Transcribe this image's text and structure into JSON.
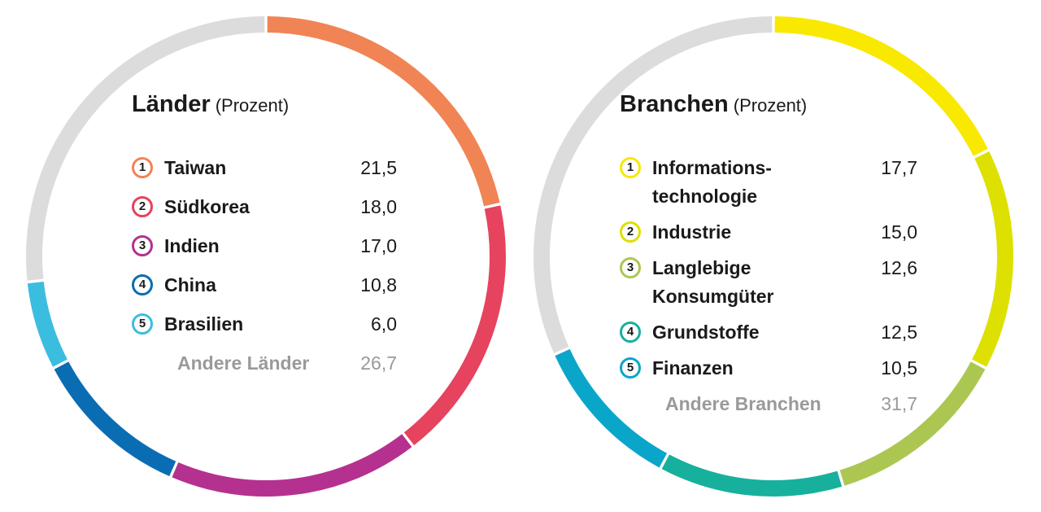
{
  "chart_data": [
    {
      "type": "pie",
      "title": "Länder",
      "subtitle": "(Prozent)",
      "categories": [
        "Taiwan",
        "Südkorea",
        "Indien",
        "China",
        "Brasilien",
        "Andere Länder"
      ],
      "values": [
        21.5,
        18.0,
        17.0,
        10.8,
        6.0,
        26.7
      ],
      "value_labels": [
        "21,5",
        "18,0",
        "17,0",
        "10,8",
        "6,0",
        "26,7"
      ],
      "colors": [
        "#f08455",
        "#e6435f",
        "#b5318f",
        "#0a6db3",
        "#3bbde0",
        "#dcdcdc"
      ],
      "markers": [
        "1",
        "2",
        "3",
        "4",
        "5"
      ]
    },
    {
      "type": "pie",
      "title": "Branchen",
      "subtitle": "(Prozent)",
      "categories": [
        "Informations-\ntechnologie",
        "Industrie",
        "Langlebige\nKonsumgüter",
        "Grundstoffe",
        "Finanzen",
        "Andere Branchen"
      ],
      "values": [
        17.7,
        15.0,
        12.6,
        12.5,
        10.5,
        31.7
      ],
      "value_labels": [
        "17,7",
        "15,0",
        "12,6",
        "12,5",
        "10,5",
        "31,7"
      ],
      "colors": [
        "#f9e800",
        "#dde000",
        "#abc752",
        "#17b09d",
        "#0aa6ca",
        "#dcdcdc"
      ],
      "markers": [
        "1",
        "2",
        "3",
        "4",
        "5"
      ]
    }
  ]
}
